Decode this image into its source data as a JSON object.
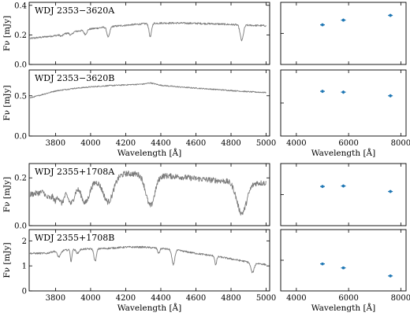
{
  "colors": {
    "spectrum": "#7a7a7a",
    "photometry": "#1f77b4"
  },
  "chart_data": [
    {
      "type": "line",
      "label": "WDJ 2353−3620A",
      "xlabel": "",
      "ylabel": "Fν [mJy]",
      "xlim": [
        3650,
        5020
      ],
      "ylim": [
        0.0,
        0.42
      ],
      "xticks": [],
      "yticks": [
        "0.0",
        "0.2",
        "0.4"
      ],
      "show_xtick_labels": false,
      "continuum": [
        [
          3650,
          0.175
        ],
        [
          3800,
          0.195
        ],
        [
          3900,
          0.22
        ],
        [
          4000,
          0.24
        ],
        [
          4100,
          0.255
        ],
        [
          4200,
          0.265
        ],
        [
          4300,
          0.275
        ],
        [
          4400,
          0.28
        ],
        [
          4500,
          0.28
        ],
        [
          4600,
          0.278
        ],
        [
          4700,
          0.275
        ],
        [
          4800,
          0.27
        ],
        [
          4900,
          0.265
        ],
        [
          5000,
          0.262
        ]
      ],
      "lines": [
        [
          3835,
          0.012,
          8
        ],
        [
          3889,
          0.018,
          8
        ],
        [
          3970,
          0.03,
          8
        ],
        [
          4101,
          0.07,
          8
        ],
        [
          4340,
          0.09,
          7
        ],
        [
          4861,
          0.105,
          9
        ]
      ],
      "noise": 0.006
    },
    {
      "type": "scatter",
      "xlim": [
        3400,
        8200
      ],
      "ylim": [
        0.0,
        0.42
      ],
      "xticks": [],
      "show_xtick_labels": false,
      "x": [
        5000,
        5800,
        7600
      ],
      "y": [
        0.268,
        0.3,
        0.332
      ],
      "yerr": [
        0.005,
        0.005,
        0.005
      ]
    },
    {
      "type": "line",
      "label": "WDJ 2353−3620B",
      "xlabel": "Wavelength [Å]",
      "ylabel": "Fν [mJy]",
      "xlim": [
        3650,
        5020
      ],
      "ylim": [
        0.0,
        0.82
      ],
      "xticks": [
        "3800",
        "4000",
        "4200",
        "4400",
        "4600",
        "4800",
        "5000"
      ],
      "yticks": [
        "0.0",
        "0.5"
      ],
      "show_xtick_labels": true,
      "continuum": [
        [
          3650,
          0.47
        ],
        [
          3700,
          0.5
        ],
        [
          3800,
          0.56
        ],
        [
          3900,
          0.59
        ],
        [
          4000,
          0.61
        ],
        [
          4100,
          0.625
        ],
        [
          4200,
          0.635
        ],
        [
          4300,
          0.645
        ],
        [
          4340,
          0.66
        ],
        [
          4400,
          0.63
        ],
        [
          4500,
          0.61
        ],
        [
          4600,
          0.595
        ],
        [
          4700,
          0.58
        ],
        [
          4800,
          0.565
        ],
        [
          4900,
          0.55
        ],
        [
          5000,
          0.54
        ]
      ],
      "lines": [],
      "noise": 0.007
    },
    {
      "type": "scatter",
      "xlabel": "Wavelength [Å]",
      "xlim": [
        3400,
        8200
      ],
      "ylim": [
        0.0,
        0.82
      ],
      "xticks": [
        "4000",
        "6000",
        "8000"
      ],
      "show_xtick_labels": true,
      "x": [
        5000,
        5800,
        7600
      ],
      "y": [
        0.555,
        0.545,
        0.5
      ],
      "yerr": [
        0.01,
        0.01,
        0.01
      ]
    },
    {
      "type": "line",
      "label": "WDJ 2355+1708A",
      "xlabel": "",
      "ylabel": "Fν [mJy]",
      "xlim": [
        3650,
        5020
      ],
      "ylim": [
        0.0,
        0.26
      ],
      "xticks": [],
      "yticks": [
        "0.0",
        "0.2"
      ],
      "show_xtick_labels": false,
      "continuum": [
        [
          3650,
          0.13
        ],
        [
          3800,
          0.15
        ],
        [
          3900,
          0.165
        ],
        [
          4000,
          0.18
        ],
        [
          4100,
          0.2
        ],
        [
          4200,
          0.218
        ],
        [
          4300,
          0.215
        ],
        [
          4400,
          0.21
        ],
        [
          4500,
          0.205
        ],
        [
          4600,
          0.197
        ],
        [
          4700,
          0.19
        ],
        [
          4800,
          0.185
        ],
        [
          4900,
          0.18
        ],
        [
          5000,
          0.178
        ]
      ],
      "lines": [
        [
          3750,
          0.025,
          8
        ],
        [
          3771,
          0.03,
          9
        ],
        [
          3798,
          0.045,
          10
        ],
        [
          3835,
          0.06,
          14
        ],
        [
          3889,
          0.07,
          18
        ],
        [
          3970,
          0.08,
          22
        ],
        [
          4101,
          0.1,
          28
        ],
        [
          4340,
          0.13,
          25
        ],
        [
          4861,
          0.13,
          28
        ]
      ],
      "noise": 0.012
    },
    {
      "type": "scatter",
      "xlim": [
        3400,
        8200
      ],
      "ylim": [
        0.0,
        0.26
      ],
      "xticks": [],
      "show_xtick_labels": false,
      "x": [
        5000,
        5800,
        7600
      ],
      "y": [
        0.164,
        0.166,
        0.143
      ],
      "yerr": [
        0.003,
        0.003,
        0.003
      ]
    },
    {
      "type": "line",
      "label": "WDJ 2355+1708B",
      "xlabel": "Wavelength [Å]",
      "ylabel": "Fν [mJy]",
      "xlim": [
        3650,
        5020
      ],
      "ylim": [
        0.0,
        2.45
      ],
      "xticks": [
        "3800",
        "4000",
        "4200",
        "4400",
        "4600",
        "4800",
        "5000"
      ],
      "yticks": [
        "0",
        "1",
        "2"
      ],
      "show_xtick_labels": true,
      "continuum": [
        [
          3650,
          1.5
        ],
        [
          3750,
          1.5
        ],
        [
          3800,
          1.6
        ],
        [
          3900,
          1.65
        ],
        [
          4000,
          1.68
        ],
        [
          4100,
          1.7
        ],
        [
          4200,
          1.75
        ],
        [
          4300,
          1.75
        ],
        [
          4400,
          1.7
        ],
        [
          4500,
          1.62
        ],
        [
          4600,
          1.5
        ],
        [
          4700,
          1.4
        ],
        [
          4800,
          1.28
        ],
        [
          4900,
          1.15
        ],
        [
          5000,
          1.05
        ]
      ],
      "lines": [
        [
          3820,
          0.25,
          10
        ],
        [
          3889,
          0.5,
          4
        ],
        [
          3926,
          0.15,
          8
        ],
        [
          4026,
          0.5,
          7
        ],
        [
          4388,
          0.2,
          6
        ],
        [
          4471,
          0.6,
          8
        ],
        [
          4713,
          0.35,
          5
        ],
        [
          4922,
          0.4,
          9
        ]
      ],
      "noise": 0.035
    },
    {
      "type": "scatter",
      "xlabel": "Wavelength [Å]",
      "xlim": [
        3400,
        8200
      ],
      "ylim": [
        0.0,
        2.45
      ],
      "xticks": [
        "4000",
        "6000",
        "8000"
      ],
      "show_xtick_labels": true,
      "x": [
        5000,
        5800,
        7600
      ],
      "y": [
        1.08,
        0.92,
        0.6
      ],
      "yerr": [
        0.02,
        0.02,
        0.02
      ]
    }
  ]
}
